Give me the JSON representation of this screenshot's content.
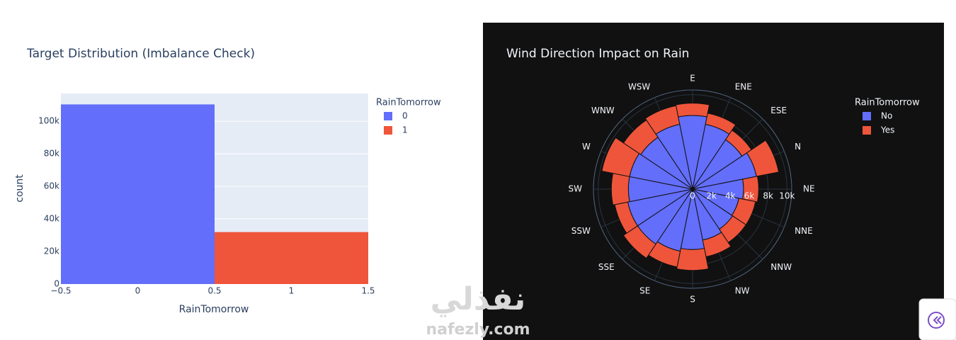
{
  "chart_data": [
    {
      "type": "bar",
      "title": "Target Distribution (Imbalance Check)",
      "x_label": "RainTomorrow",
      "y_label": "count",
      "x": [
        0,
        1
      ],
      "series": [
        {
          "name": "0",
          "color": "#636efa",
          "values": [
            110300,
            null
          ]
        },
        {
          "name": "1",
          "color": "#ef553b",
          "values": [
            null,
            31900
          ]
        }
      ],
      "legend_title": "RainTomorrow",
      "xlim": [
        -0.5,
        1.5
      ],
      "xticks": [
        {
          "value": -0.5,
          "label": "−0.5"
        },
        0,
        0.5,
        1,
        1.5
      ],
      "ylim": [
        0,
        117000
      ],
      "yticks": [
        0,
        {
          "value": 20000,
          "label": "20k"
        },
        {
          "value": 40000,
          "label": "40k"
        },
        {
          "value": 60000,
          "label": "60k"
        },
        {
          "value": 80000,
          "label": "80k"
        },
        {
          "value": 100000,
          "label": "100k"
        }
      ],
      "grid": true
    },
    {
      "type": "barpolar",
      "title": "Wind Direction Impact on Rain",
      "categories": [
        "E",
        "ENE",
        "ESE",
        "N",
        "NE",
        "NNE",
        "NNW",
        "NW",
        "S",
        "SE",
        "SSE",
        "SSW",
        "SW",
        "W",
        "WNW",
        "WSW"
      ],
      "series": [
        {
          "name": "No",
          "color": "#636efa",
          "values": [
            7800,
            7000,
            6300,
            6900,
            5400,
            5000,
            5100,
            5500,
            6400,
            6700,
            7000,
            7000,
            6800,
            6800,
            6600,
            7000
          ]
        },
        {
          "name": "Yes",
          "color": "#ef553b",
          "values": [
            1300,
            1200,
            1200,
            2400,
            1600,
            1800,
            1700,
            1800,
            2200,
            1700,
            1800,
            1400,
            1800,
            3000,
            2200,
            2000
          ]
        }
      ],
      "legend_title": "RainTomorrow",
      "direction": "clockwise",
      "rotation": 90,
      "rlim": [
        0,
        10500
      ],
      "rticks": [
        0,
        {
          "value": 2000,
          "label": "2k"
        },
        {
          "value": 4000,
          "label": "4k"
        },
        {
          "value": 6000,
          "label": "6k"
        },
        {
          "value": 8000,
          "label": "8k"
        },
        {
          "value": 10000,
          "label": "10k"
        }
      ],
      "grid": true
    }
  ],
  "watermark": {
    "arabic": "نفذلي",
    "latin": "nafezly.com"
  }
}
